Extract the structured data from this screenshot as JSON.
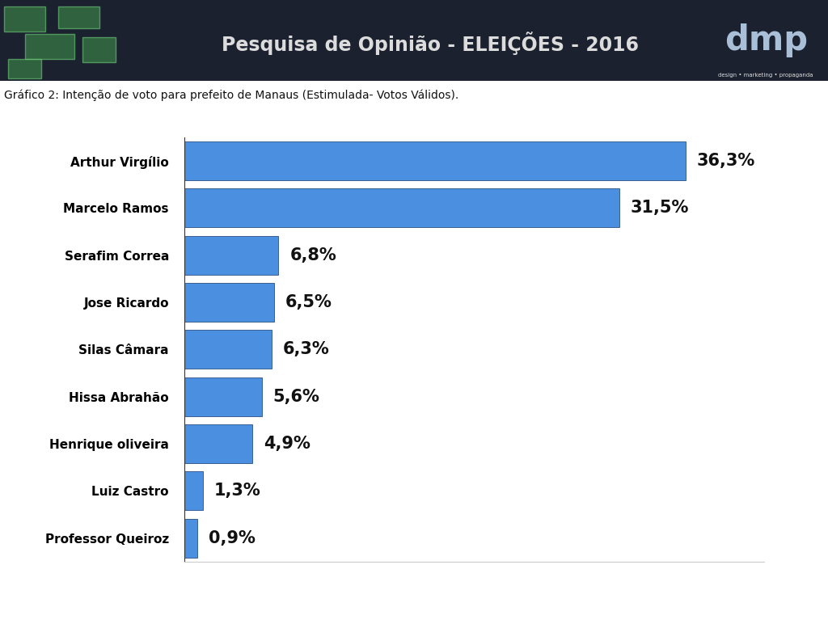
{
  "header": {
    "title": "Pesquisa de Opinião - ELEIÇÕES - 2016",
    "logo": "dmp",
    "tagline": "design • marketing • propaganda"
  },
  "chart_data": {
    "type": "bar",
    "orientation": "horizontal",
    "title": "Gráfico 2: Intenção de voto para prefeito de Manaus (Estimulada- Votos Válidos).",
    "categories": [
      "Arthur Virgílio",
      "Marcelo Ramos",
      "Serafim Correa",
      "Jose Ricardo",
      "Silas Câmara",
      "Hissa Abrahão",
      "Henrique oliveira",
      "Luiz Castro",
      "Professor Queiroz"
    ],
    "values": [
      36.3,
      31.5,
      6.8,
      6.5,
      6.3,
      5.6,
      4.9,
      1.3,
      0.9
    ],
    "value_labels": [
      "36,3%",
      "31,5%",
      "6,8%",
      "6,5%",
      "6,3%",
      "5,6%",
      "4,9%",
      "1,3%",
      "0,9%"
    ],
    "color": "#4a8fe0",
    "xlim": [
      0,
      42
    ],
    "data_labels": true,
    "tick_labels": "y",
    "grid": false
  }
}
